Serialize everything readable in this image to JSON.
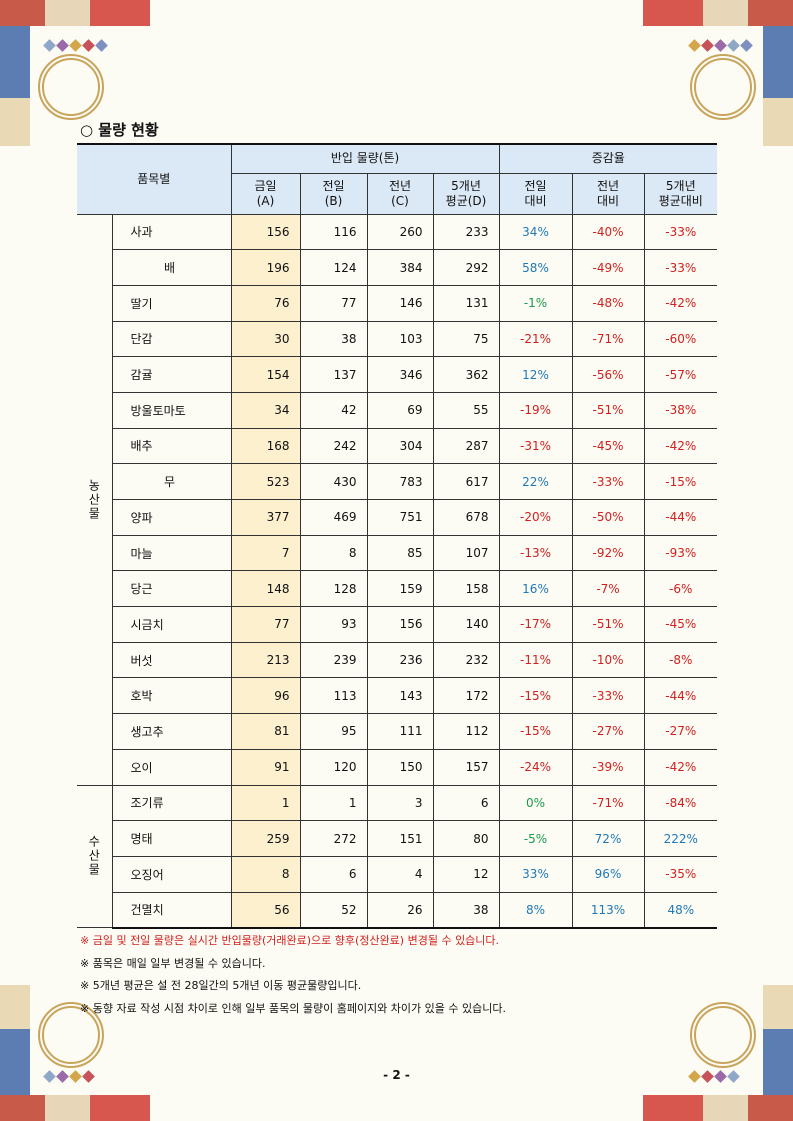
{
  "title": "○ 물량 현황",
  "table": {
    "header": {
      "item": "품목별",
      "volume": "반입 물량(톤)",
      "change": "증감율",
      "columns": [
        "금일\n(A)",
        "전일\n(B)",
        "전년\n(C)",
        "5개년\n평균(D)",
        "전일\n대비",
        "전년\n대비",
        "5개년\n평균대비"
      ]
    },
    "groups": [
      {
        "name": "농산물",
        "rows": [
          [
            "사과",
            156,
            116,
            260,
            233,
            "34%",
            "-40%",
            "-33%"
          ],
          [
            "배",
            196,
            124,
            384,
            292,
            "58%",
            "-49%",
            "-33%"
          ],
          [
            "딸기",
            76,
            77,
            146,
            131,
            "-1%",
            "-48%",
            "-42%"
          ],
          [
            "단감",
            30,
            38,
            103,
            75,
            "-21%",
            "-71%",
            "-60%"
          ],
          [
            "감귤",
            154,
            137,
            346,
            362,
            "12%",
            "-56%",
            "-57%"
          ],
          [
            "방울토마토",
            34,
            42,
            69,
            55,
            "-19%",
            "-51%",
            "-38%"
          ],
          [
            "배추",
            168,
            242,
            304,
            287,
            "-31%",
            "-45%",
            "-42%"
          ],
          [
            "무",
            523,
            430,
            783,
            617,
            "22%",
            "-33%",
            "-15%"
          ],
          [
            "양파",
            377,
            469,
            751,
            678,
            "-20%",
            "-50%",
            "-44%"
          ],
          [
            "마늘",
            7,
            8,
            85,
            107,
            "-13%",
            "-92%",
            "-93%"
          ],
          [
            "당근",
            148,
            128,
            159,
            158,
            "16%",
            "-7%",
            "-6%"
          ],
          [
            "시금치",
            77,
            93,
            156,
            140,
            "-17%",
            "-51%",
            "-45%"
          ],
          [
            "버섯",
            213,
            239,
            236,
            232,
            "-11%",
            "-10%",
            "-8%"
          ],
          [
            "호박",
            96,
            113,
            143,
            172,
            "-15%",
            "-33%",
            "-44%"
          ],
          [
            "생고추",
            81,
            95,
            111,
            112,
            "-15%",
            "-27%",
            "-27%"
          ],
          [
            "오이",
            91,
            120,
            150,
            157,
            "-24%",
            "-39%",
            "-42%"
          ]
        ]
      },
      {
        "name": "수산물",
        "rows": [
          [
            "조기류",
            1,
            1,
            3,
            6,
            "0%",
            "-71%",
            "-84%"
          ],
          [
            "명태",
            259,
            272,
            151,
            80,
            "-5%",
            "72%",
            "222%"
          ],
          [
            "오징어",
            8,
            6,
            4,
            12,
            "33%",
            "96%",
            "-35%"
          ],
          [
            "건멸치",
            56,
            52,
            26,
            38,
            "8%",
            "113%",
            "48%"
          ]
        ]
      }
    ]
  },
  "notes": [
    "※ 금일 및 전일 물량은 실시간 반입물량(거래완료)으로 향후(정산완료) 변경될 수 있습니다.",
    "※ 품목은 매일 일부 변경될 수 있습니다.",
    "※ 5개년 평균은 설 전 28일간의 5개년 이동 평균물량입니다.",
    "※ 동향 자료 작성 시점 차이로 인해 일부 품목의 물량이 홈페이지와 차이가 있을 수 있습니다."
  ],
  "page_number": "- 2 -"
}
